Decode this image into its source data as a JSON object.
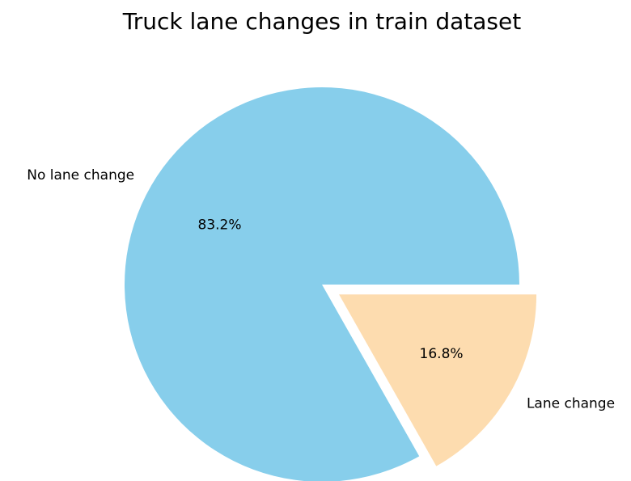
{
  "chart_data": {
    "type": "pie",
    "title": "Truck lane changes in train dataset",
    "categories": [
      "No lane change",
      "Lane change"
    ],
    "values": [
      83.2,
      16.8
    ],
    "value_labels": [
      "83.2%",
      "16.8%"
    ],
    "colors": [
      "#87ceeb",
      "#fddcaf"
    ],
    "explode": [
      0,
      0.1
    ],
    "startangle": 0
  }
}
